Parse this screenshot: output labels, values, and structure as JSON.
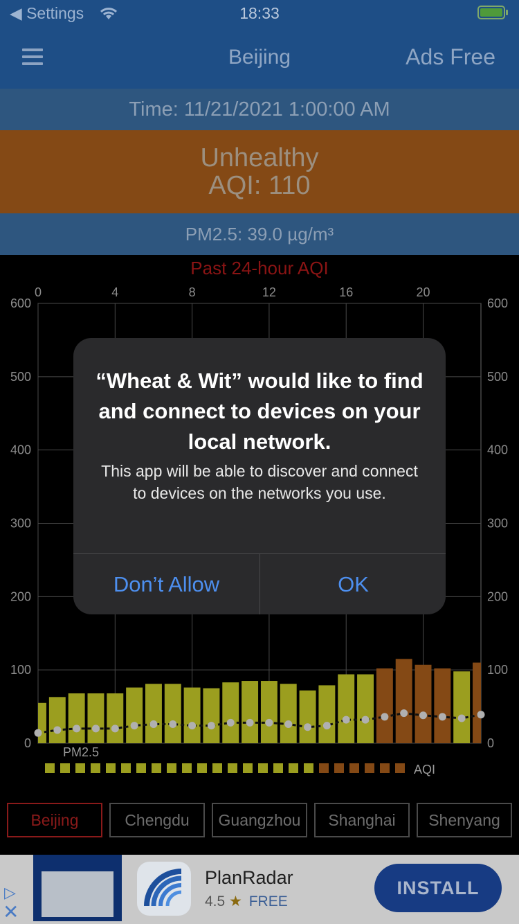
{
  "status_bar": {
    "back_label": "◀ Settings",
    "time": "18:33"
  },
  "nav": {
    "title": "Beijing",
    "ads_free_label": "Ads Free"
  },
  "time_row": {
    "text": "Time: 11/21/2021 1:00:00 AM"
  },
  "level": {
    "category": "Unhealthy",
    "aqi": "AQI: 110"
  },
  "pm_row": {
    "text": "PM2.5: 39.0 µg/m³"
  },
  "chart_data": {
    "type": "bar",
    "title": "Past 24-hour AQI",
    "x_ticks": [
      "0",
      "4",
      "8",
      "12",
      "16",
      "20"
    ],
    "y_ticks": [
      "600",
      "500",
      "400",
      "300",
      "200",
      "100",
      "0"
    ],
    "ylim": [
      0,
      600
    ],
    "xlim": [
      0,
      23
    ],
    "grid": true,
    "series": [
      {
        "name": "AQI",
        "hours": [
          0,
          1,
          2,
          3,
          4,
          5,
          6,
          7,
          8,
          9,
          10,
          11,
          12,
          13,
          14,
          15,
          16,
          17,
          18,
          19,
          20,
          21,
          22,
          23
        ],
        "values": [
          55,
          63,
          68,
          68,
          68,
          76,
          81,
          81,
          76,
          75,
          83,
          85,
          85,
          81,
          72,
          79,
          94,
          94,
          102,
          115,
          107,
          102,
          98,
          110
        ],
        "colors": [
          "#9b9e1f",
          "#9b9e1f",
          "#9b9e1f",
          "#9b9e1f",
          "#9b9e1f",
          "#9b9e1f",
          "#9b9e1f",
          "#9b9e1f",
          "#9b9e1f",
          "#9b9e1f",
          "#9b9e1f",
          "#9b9e1f",
          "#9b9e1f",
          "#9b9e1f",
          "#9b9e1f",
          "#9b9e1f",
          "#9b9e1f",
          "#9b9e1f",
          "#844915",
          "#844915",
          "#844915",
          "#844915",
          "#9b9e1f",
          "#844915"
        ]
      },
      {
        "name": "PM2.5",
        "hours": [
          0,
          1,
          2,
          3,
          4,
          5,
          6,
          7,
          8,
          9,
          10,
          11,
          12,
          13,
          14,
          15,
          16,
          17,
          18,
          19,
          20,
          21,
          22,
          23
        ],
        "values": [
          14,
          18,
          20,
          20,
          20,
          24,
          26,
          26,
          24,
          24,
          28,
          28,
          28,
          26,
          22,
          24,
          32,
          32,
          36,
          41,
          38,
          36,
          34,
          39
        ]
      }
    ],
    "legend": {
      "pm_label": "PM2.5",
      "aqi_label": "AQI",
      "squares": [
        "#9b9e1f",
        "#9b9e1f",
        "#9b9e1f",
        "#9b9e1f",
        "#9b9e1f",
        "#9b9e1f",
        "#9b9e1f",
        "#9b9e1f",
        "#9b9e1f",
        "#9b9e1f",
        "#9b9e1f",
        "#9b9e1f",
        "#9b9e1f",
        "#9b9e1f",
        "#9b9e1f",
        "#9b9e1f",
        "#9b9e1f",
        "#9b9e1f",
        "#844915",
        "#844915",
        "#844915",
        "#844915",
        "#844915",
        "#844915"
      ]
    }
  },
  "cities": [
    "Beijing",
    "Chengdu",
    "Guangzhou",
    "Shanghai",
    "Shenyang"
  ],
  "active_city": "Beijing",
  "ad": {
    "app_name": "PlanRadar",
    "rating": "4.5",
    "star": "★",
    "price": "FREE",
    "install_label": "INSTALL"
  },
  "alert": {
    "title": "“Wheat & Wit” would like to find and connect to devices on your local network.",
    "message": "This app will be able to discover and connect to devices on the networks you use.",
    "deny_label": "Don’t Allow",
    "ok_label": "OK"
  }
}
